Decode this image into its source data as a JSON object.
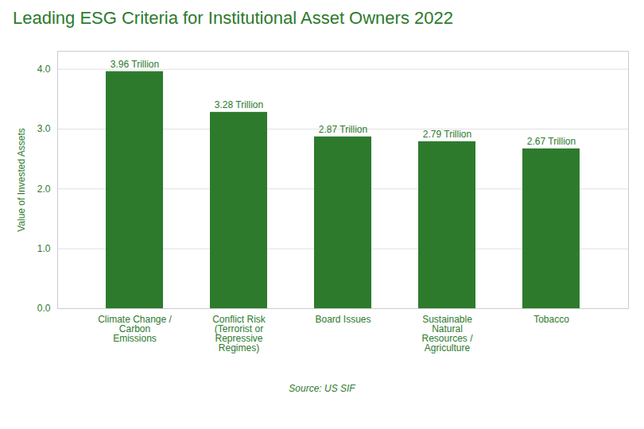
{
  "chart_data": {
    "type": "bar",
    "title": "Leading ESG Criteria for Institutional Asset Owners 2022",
    "categories": [
      "Climate Change /\nCarbon\nEmissions",
      "Conflict Risk\n(Terrorist or\nRepressive\nRegimes)",
      "Board Issues",
      "Sustainable\nNatural\nResources /\nAgriculture",
      "Tobacco"
    ],
    "values": [
      3.96,
      3.28,
      2.87,
      2.79,
      2.67
    ],
    "value_labels": [
      "3.96 Trillion",
      "3.28 Trillion",
      "2.87 Trillion",
      "2.79 Trillion",
      "2.67 Trillion"
    ],
    "data_labels": true,
    "color": "#2d7a2d",
    "ylabel": "Value of Invested Assets",
    "ylim": [
      0,
      4.3
    ],
    "yticks": [
      0,
      1,
      2,
      3,
      4
    ],
    "grid": true,
    "annotation": "Source: US SIF"
  }
}
